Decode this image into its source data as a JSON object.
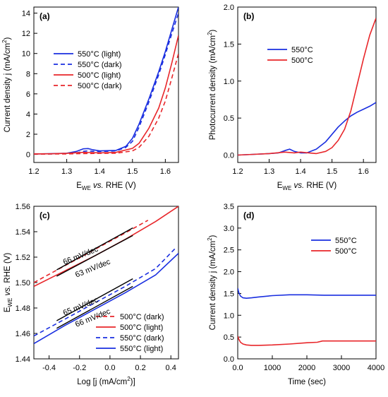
{
  "panels": [
    {
      "id": "a",
      "label": "(a)",
      "ylabel_main": "Current density j (mA/cm",
      "ylabel_sup": "2",
      "ylabel_tail": ")",
      "xlabel_pre": "E",
      "xlabel_sub": "WE",
      "xlabel_vs": "vs.",
      "xlabel_post": "RHE (V)",
      "legend_position": "top-left",
      "legend_unit": "",
      "legend_values": [
        "550°C (light)",
        "550°C (dark)",
        "500°C (light)",
        "500°C (dark)"
      ]
    },
    {
      "id": "b",
      "label": "(b)",
      "ylabel_main": "Photocurrent density (mA/cm",
      "ylabel_sup": "2",
      "ylabel_tail": ")",
      "xlabel_pre": "E",
      "xlabel_sub": "WE",
      "xlabel_vs": "vs.",
      "xlabel_post": "RHE (V)",
      "legend_position": "top-left",
      "legend_unit": "",
      "legend_values": [
        "550°C",
        "500°C"
      ]
    },
    {
      "id": "c",
      "label": "(c)",
      "ylabel_main": "E",
      "ylabel_sub": "WE",
      "ylabel_vs": "vs.",
      "ylabel_tail": "RHE (V)",
      "xlabel": "Log [j (mA/cm",
      "xlabel_sup": "2",
      "xlabel_tail": ")]",
      "legend_position": "bottom-right",
      "legend_values": [
        "500°C (dark)",
        "500°C (light)",
        "550°C (dark)",
        "550°C (light)"
      ],
      "annotations": [
        "66 mV/dec",
        "63 mV/dec",
        "65 mV/dec",
        "66 mV/dec"
      ]
    },
    {
      "id": "d",
      "label": "(d)",
      "ylabel_main": "Current density j (mA/cm",
      "ylabel_sup": "2",
      "ylabel_tail": ")",
      "xlabel": "Time (sec)",
      "legend_position": "top-right",
      "legend_values": [
        "550°C",
        "500°C"
      ]
    }
  ],
  "colors": {
    "blue": "#1a2fe0",
    "red": "#e8262a",
    "black": "#000000"
  },
  "chart_data": [
    {
      "type": "line",
      "panel": "a",
      "xlim": [
        1.2,
        1.64
      ],
      "ylim": [
        -0.8,
        14.6
      ],
      "xticks": [
        1.2,
        1.3,
        1.4,
        1.5,
        1.6
      ],
      "yticks": [
        0,
        2,
        4,
        6,
        8,
        10,
        12,
        14
      ],
      "series": [
        {
          "name": "550°C (light)",
          "color": "blue",
          "dash": false,
          "x": [
            1.2,
            1.25,
            1.3,
            1.33,
            1.35,
            1.365,
            1.38,
            1.4,
            1.45,
            1.48,
            1.5,
            1.52,
            1.55,
            1.58,
            1.6,
            1.62,
            1.64
          ],
          "y": [
            0.05,
            0.07,
            0.12,
            0.3,
            0.55,
            0.58,
            0.45,
            0.35,
            0.4,
            0.8,
            1.6,
            3.0,
            5.5,
            8.2,
            10.2,
            12.4,
            14.6
          ]
        },
        {
          "name": "550°C (dark)",
          "color": "blue",
          "dash": true,
          "x": [
            1.2,
            1.25,
            1.3,
            1.33,
            1.35,
            1.365,
            1.38,
            1.4,
            1.45,
            1.48,
            1.5,
            1.52,
            1.55,
            1.58,
            1.6,
            1.62,
            1.64
          ],
          "y": [
            0.04,
            0.05,
            0.08,
            0.15,
            0.3,
            0.35,
            0.3,
            0.28,
            0.35,
            0.7,
            1.3,
            2.7,
            5.2,
            7.9,
            9.9,
            12.0,
            14.0
          ]
        },
        {
          "name": "500°C (light)",
          "color": "red",
          "dash": false,
          "x": [
            1.2,
            1.25,
            1.3,
            1.35,
            1.4,
            1.45,
            1.5,
            1.52,
            1.55,
            1.58,
            1.6,
            1.62,
            1.64
          ],
          "y": [
            0.05,
            0.06,
            0.1,
            0.2,
            0.15,
            0.2,
            0.6,
            1.1,
            2.6,
            4.6,
            6.6,
            9.1,
            11.8
          ]
        },
        {
          "name": "500°C (dark)",
          "color": "red",
          "dash": true,
          "x": [
            1.2,
            1.25,
            1.3,
            1.35,
            1.4,
            1.45,
            1.5,
            1.52,
            1.55,
            1.58,
            1.6,
            1.62,
            1.64
          ],
          "y": [
            0.03,
            0.04,
            0.05,
            0.08,
            0.1,
            0.12,
            0.35,
            0.7,
            1.8,
            3.6,
            5.3,
            7.6,
            10.0
          ]
        }
      ]
    },
    {
      "type": "line",
      "panel": "b",
      "xlim": [
        1.2,
        1.64
      ],
      "ylim": [
        -0.1,
        2.0
      ],
      "xticks": [
        1.2,
        1.3,
        1.4,
        1.5,
        1.6
      ],
      "yticks": [
        0.0,
        0.5,
        1.0,
        1.5,
        2.0
      ],
      "series": [
        {
          "name": "550°C",
          "color": "blue",
          "dash": false,
          "x": [
            1.2,
            1.25,
            1.3,
            1.33,
            1.35,
            1.365,
            1.38,
            1.4,
            1.42,
            1.45,
            1.48,
            1.5,
            1.52,
            1.54,
            1.56,
            1.58,
            1.6,
            1.62,
            1.64
          ],
          "y": [
            0.0,
            0.01,
            0.02,
            0.03,
            0.06,
            0.08,
            0.05,
            0.03,
            0.03,
            0.08,
            0.18,
            0.28,
            0.38,
            0.46,
            0.53,
            0.58,
            0.62,
            0.66,
            0.71
          ]
        },
        {
          "name": "500°C",
          "color": "red",
          "dash": false,
          "x": [
            1.2,
            1.25,
            1.3,
            1.35,
            1.38,
            1.4,
            1.45,
            1.48,
            1.5,
            1.52,
            1.54,
            1.56,
            1.58,
            1.6,
            1.62,
            1.64
          ],
          "y": [
            0.0,
            0.01,
            0.02,
            0.04,
            0.03,
            0.04,
            0.02,
            0.05,
            0.1,
            0.2,
            0.35,
            0.6,
            0.95,
            1.3,
            1.62,
            1.85
          ]
        }
      ]
    },
    {
      "type": "line",
      "panel": "c",
      "xlim": [
        -0.5,
        0.45
      ],
      "ylim": [
        1.44,
        1.56
      ],
      "xticks": [
        -0.4,
        -0.2,
        0.0,
        0.2,
        0.4
      ],
      "yticks": [
        1.44,
        1.46,
        1.48,
        1.5,
        1.52,
        1.54,
        1.56
      ],
      "series": [
        {
          "name": "500°C (dark)",
          "color": "red",
          "dash": true,
          "x": [
            -0.5,
            -0.3,
            -0.1,
            0.1,
            0.25
          ],
          "y": [
            1.5,
            1.513,
            1.526,
            1.539,
            1.549
          ]
        },
        {
          "name": "500°C (light)",
          "color": "red",
          "dash": false,
          "x": [
            -0.5,
            -0.3,
            -0.1,
            0.1,
            0.3,
            0.45
          ],
          "y": [
            1.497,
            1.509,
            1.521,
            1.534,
            1.548,
            1.56
          ]
        },
        {
          "name": "550°C (dark)",
          "color": "blue",
          "dash": true,
          "x": [
            -0.5,
            -0.3,
            -0.1,
            0.1,
            0.3,
            0.43
          ],
          "y": [
            1.458,
            1.471,
            1.484,
            1.497,
            1.511,
            1.527
          ]
        },
        {
          "name": "550°C (light)",
          "color": "blue",
          "dash": false,
          "x": [
            -0.5,
            -0.3,
            -0.1,
            0.1,
            0.3,
            0.45
          ],
          "y": [
            1.452,
            1.466,
            1.479,
            1.492,
            1.506,
            1.523
          ]
        }
      ],
      "fit_lines": [
        {
          "x": [
            -0.35,
            0.15
          ],
          "y": [
            1.51,
            1.543
          ]
        },
        {
          "x": [
            -0.35,
            0.15
          ],
          "y": [
            1.505,
            1.537
          ]
        },
        {
          "x": [
            -0.35,
            0.15
          ],
          "y": [
            1.47,
            1.503
          ]
        },
        {
          "x": [
            -0.35,
            0.15
          ],
          "y": [
            1.464,
            1.497
          ]
        }
      ]
    },
    {
      "type": "line",
      "panel": "d",
      "xlim": [
        0,
        4000
      ],
      "ylim": [
        0,
        3.5
      ],
      "xticks": [
        0,
        1000,
        2000,
        3000,
        4000
      ],
      "yticks": [
        0.0,
        0.5,
        1.0,
        1.5,
        2.0,
        2.5,
        3.0,
        3.5
      ],
      "series": [
        {
          "name": "550°C",
          "color": "blue",
          "dash": false,
          "x": [
            0,
            30,
            80,
            150,
            250,
            400,
            600,
            1000,
            1500,
            2000,
            2500,
            3000,
            3500,
            4000
          ],
          "y": [
            1.62,
            1.52,
            1.44,
            1.4,
            1.39,
            1.4,
            1.42,
            1.45,
            1.47,
            1.47,
            1.46,
            1.46,
            1.46,
            1.46
          ]
        },
        {
          "name": "500°C",
          "color": "red",
          "dash": false,
          "x": [
            0,
            30,
            80,
            150,
            250,
            400,
            600,
            1000,
            1500,
            2000,
            2300,
            2450,
            2600,
            3000,
            3500,
            4000
          ],
          "y": [
            0.52,
            0.45,
            0.38,
            0.34,
            0.32,
            0.31,
            0.31,
            0.32,
            0.34,
            0.37,
            0.38,
            0.41,
            0.41,
            0.41,
            0.41,
            0.41
          ]
        }
      ]
    }
  ]
}
